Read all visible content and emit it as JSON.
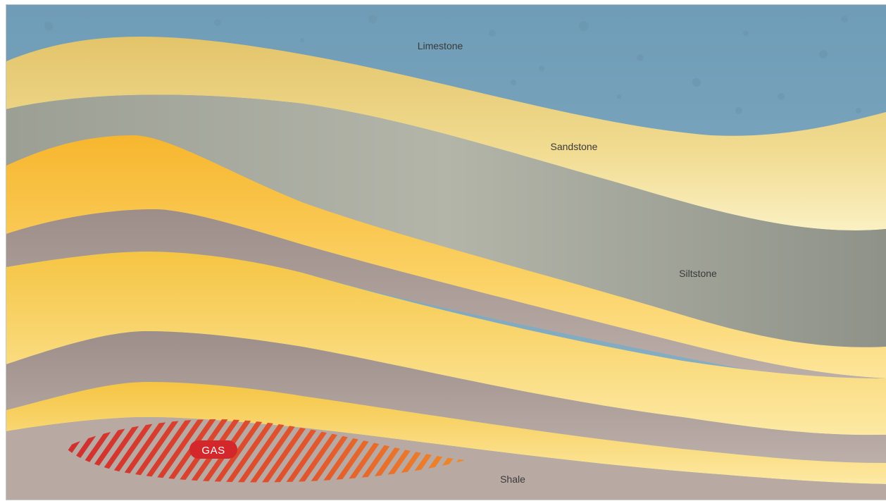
{
  "diagram": {
    "layers": {
      "limestone": "Limestone",
      "sandstone": "Sandstone",
      "siltstone": "Siltstone",
      "shale": "Shale"
    },
    "gas_label": "GAS",
    "colors": {
      "limestone": "#7ea7bf",
      "sandstone": "#ecd27e",
      "siltstone": "#a8aba0",
      "shale": "#b0a09a",
      "gas_zone": "#d53d2f"
    }
  }
}
